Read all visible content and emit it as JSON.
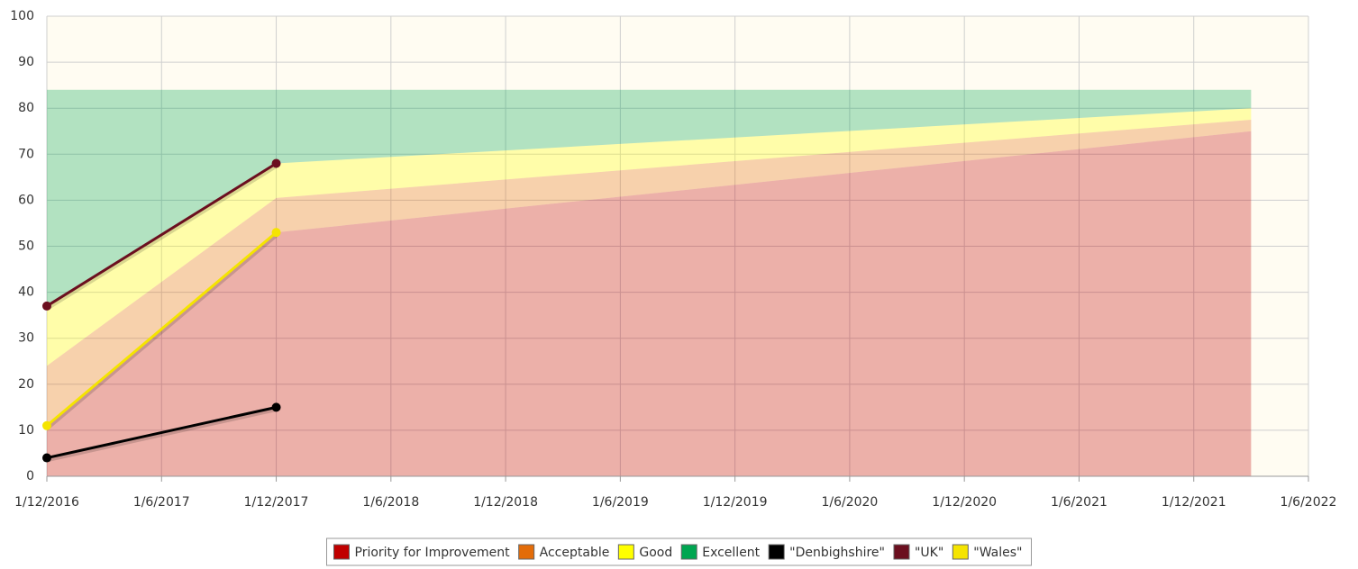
{
  "chart_data": {
    "type": "area_line",
    "xlim": [
      "1/12/2016",
      "1/6/2022"
    ],
    "xticks": [
      "1/12/2016",
      "1/6/2017",
      "1/12/2017",
      "1/6/2018",
      "1/12/2018",
      "1/6/2019",
      "1/12/2019",
      "1/6/2020",
      "1/12/2020",
      "1/6/2021",
      "1/12/2021",
      "1/6/2022"
    ],
    "ylim": [
      0,
      100
    ],
    "yticks": [
      0,
      10,
      20,
      30,
      40,
      50,
      60,
      70,
      80,
      90,
      100
    ],
    "grid": true,
    "legend": "bottom",
    "series": [
      {
        "name": "Priority for Improvement",
        "type": "area",
        "color": "#c00000",
        "x": [
          "1/12/2016",
          "1/12/2017",
          "1/3/2022"
        ],
        "values": [
          11,
          53,
          75
        ]
      },
      {
        "name": "Acceptable",
        "type": "area",
        "color": "#e36c09",
        "x": [
          "1/12/2016",
          "1/12/2017",
          "1/3/2022"
        ],
        "values": [
          13,
          7.5,
          2.5
        ]
      },
      {
        "name": "Good",
        "type": "area",
        "color": "#ffff00",
        "x": [
          "1/12/2016",
          "1/12/2017",
          "1/3/2022"
        ],
        "values": [
          13,
          7.5,
          2.5
        ]
      },
      {
        "name": "Excellent",
        "type": "area",
        "color": "#00a651",
        "x": [
          "1/12/2016",
          "1/12/2017",
          "1/3/2022"
        ],
        "values": [
          47,
          16,
          4
        ]
      },
      {
        "name": "\"Denbighshire\"",
        "type": "line",
        "color": "#000000",
        "x": [
          "1/12/2016",
          "1/12/2017"
        ],
        "values": [
          4,
          15
        ]
      },
      {
        "name": "\"UK\"",
        "type": "line",
        "color": "#6b0f1f",
        "x": [
          "1/12/2016",
          "1/12/2017"
        ],
        "values": [
          37,
          68
        ]
      },
      {
        "name": "\"Wales\"",
        "type": "line",
        "color": "#f5e400",
        "x": [
          "1/12/2016",
          "1/12/2017"
        ],
        "values": [
          11,
          53
        ]
      }
    ]
  }
}
